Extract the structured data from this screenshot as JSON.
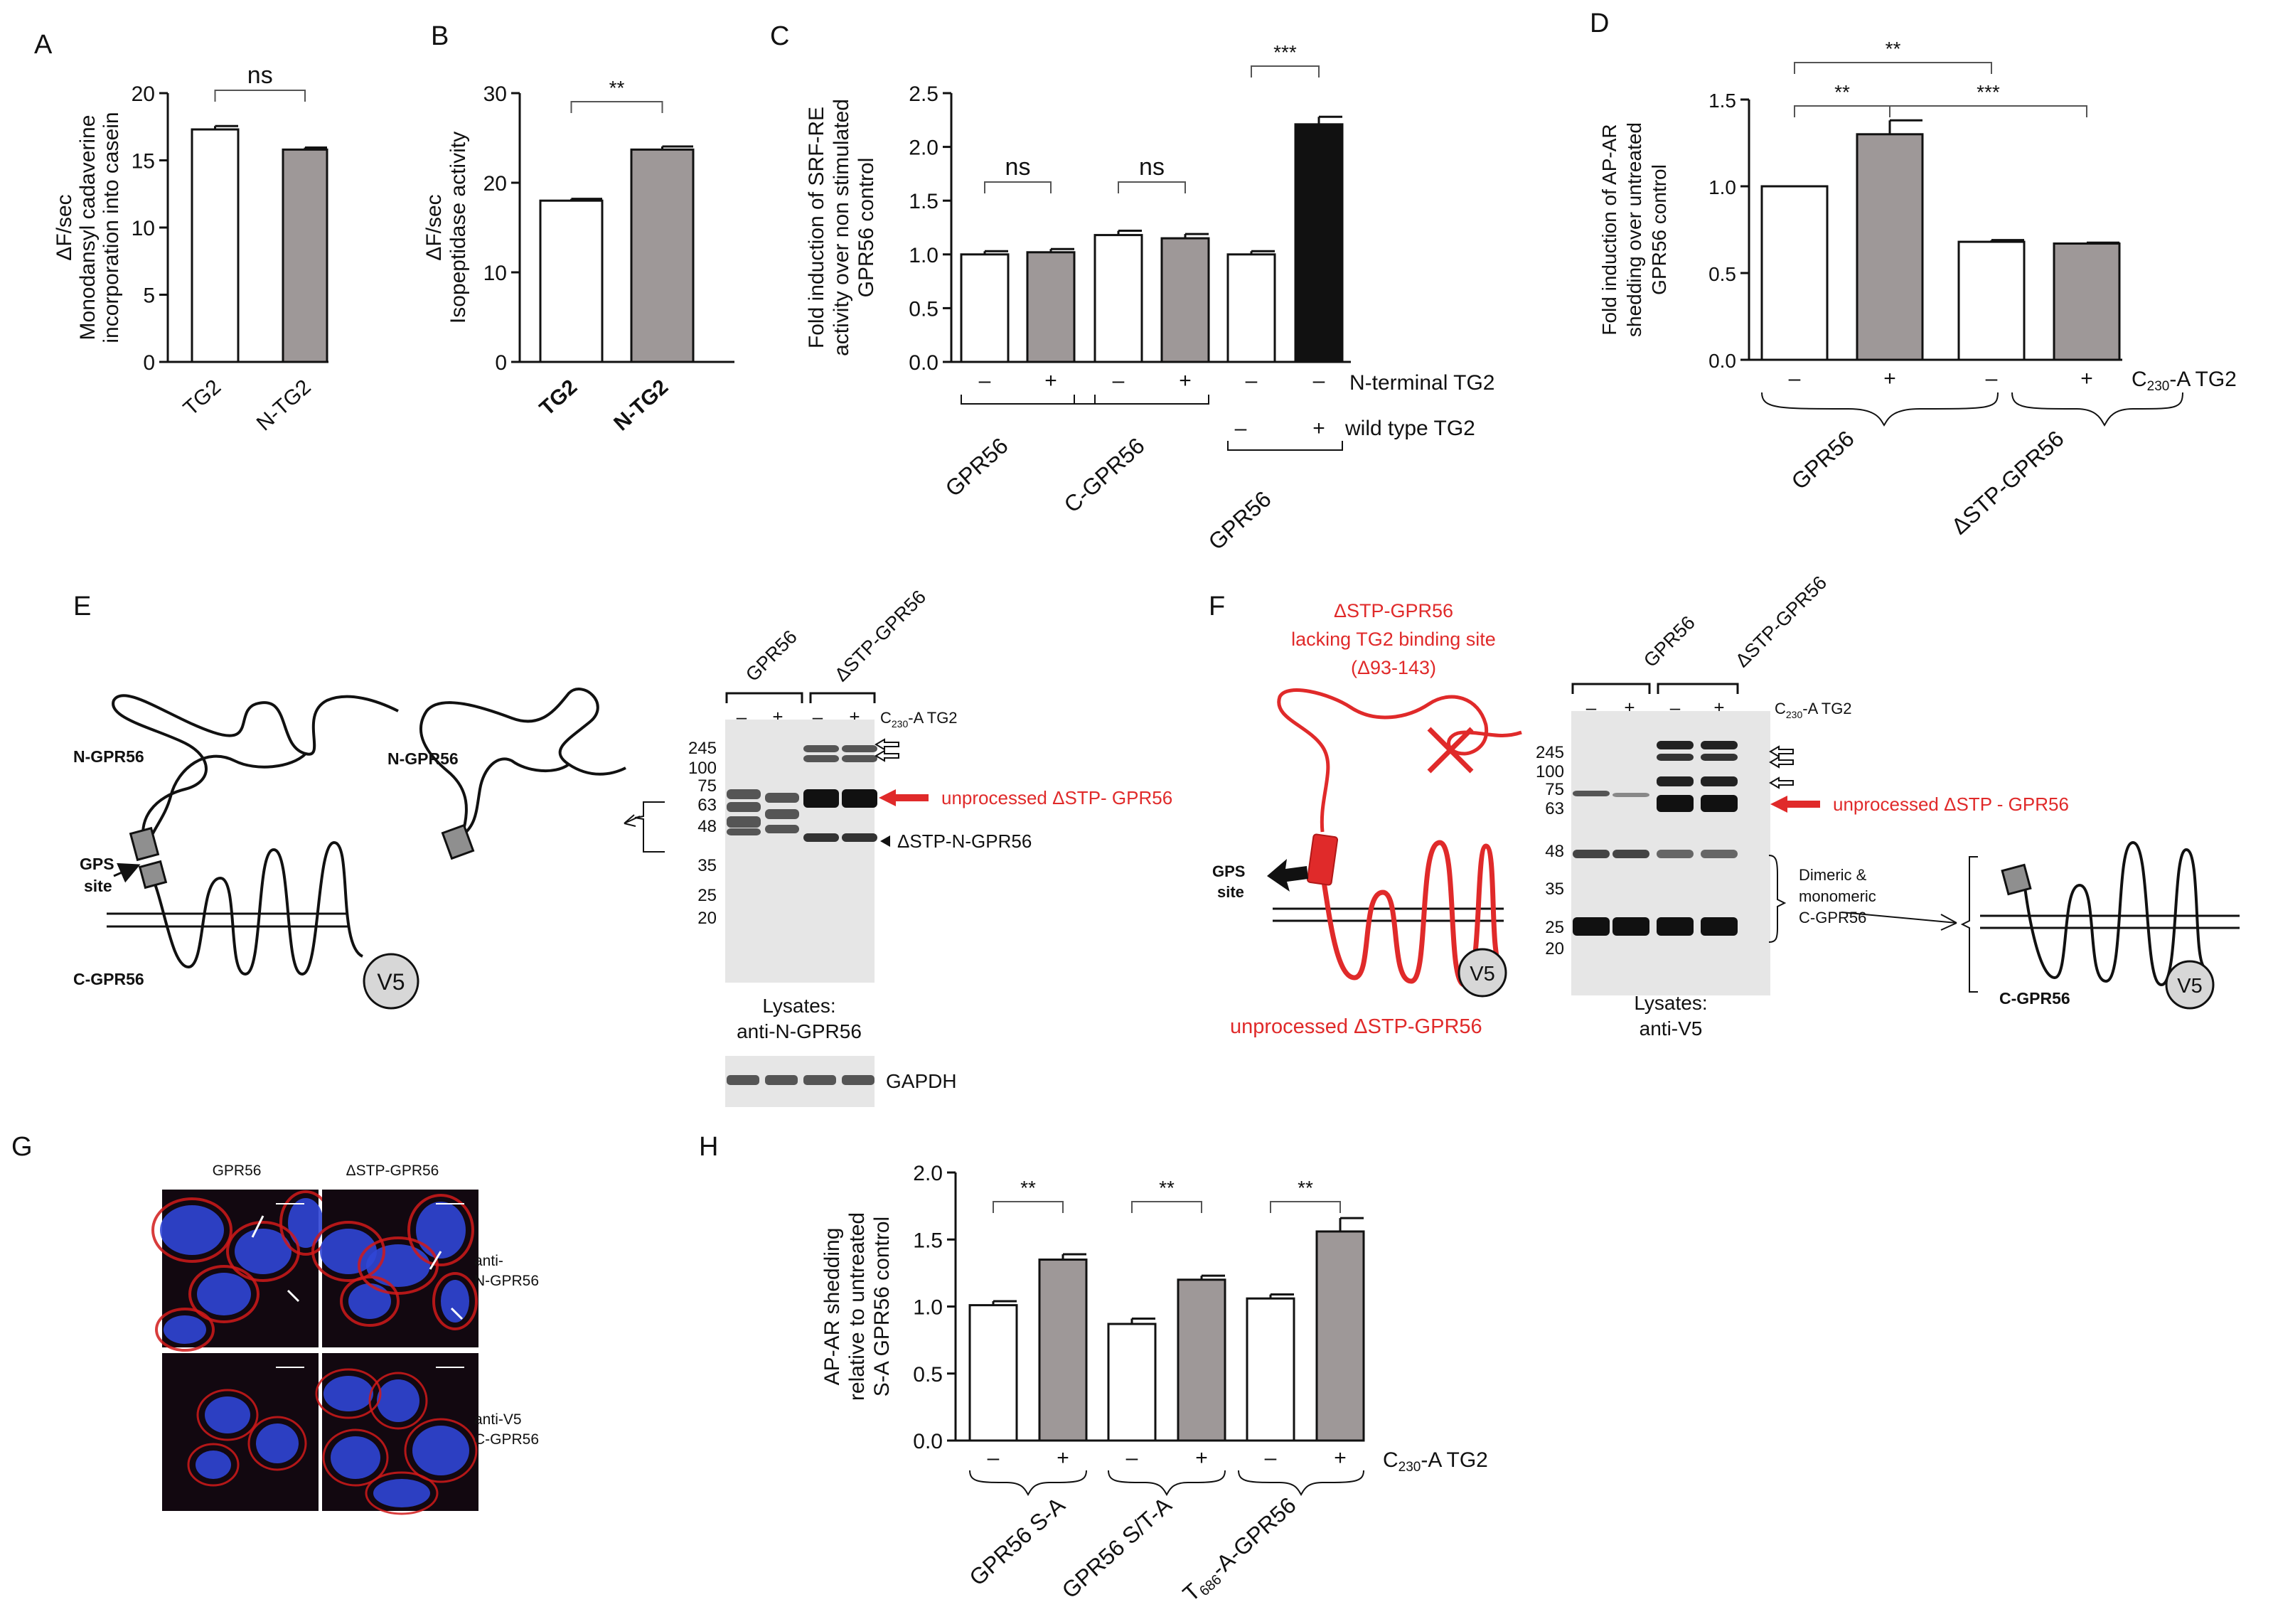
{
  "panels": {
    "A": "A",
    "B": "B",
    "C": "C",
    "D": "D",
    "E": "E",
    "F": "F",
    "G": "G",
    "H": "H"
  },
  "chart_data": [
    {
      "id": "A",
      "type": "bar",
      "categories": [
        "TG2",
        "N-TG2"
      ],
      "values": [
        17.3,
        15.8
      ],
      "errors": [
        0.25,
        0.15
      ],
      "fills": [
        "#ffffff",
        "#9e9898"
      ],
      "ylabel_lines": [
        "ΔF/sec",
        "Monodansyl cadaverine",
        "incorporation into casein"
      ],
      "yticks": [
        0,
        5,
        10,
        15,
        20
      ],
      "ylim": [
        0,
        20
      ],
      "significance": [
        {
          "label": "ns",
          "from": 0,
          "to": 1
        }
      ]
    },
    {
      "id": "B",
      "type": "bar",
      "categories": [
        "TG2",
        "N-TG2"
      ],
      "values": [
        18.0,
        23.7
      ],
      "errors": [
        0.2,
        0.35
      ],
      "fills": [
        "#ffffff",
        "#9e9898"
      ],
      "ylabel_lines": [
        "ΔF/sec",
        "Isopeptidase activity"
      ],
      "yticks": [
        0,
        10,
        20,
        30
      ],
      "ylim": [
        0,
        30
      ],
      "significance": [
        {
          "label": "**",
          "from": 0,
          "to": 1
        }
      ]
    },
    {
      "id": "C",
      "type": "bar",
      "categories": [
        "–",
        "+",
        "–",
        "+",
        "–",
        "–"
      ],
      "values": [
        1.0,
        1.02,
        1.18,
        1.15,
        1.0,
        2.21
      ],
      "errors": [
        0.03,
        0.03,
        0.04,
        0.04,
        0.03,
        0.07
      ],
      "fills": [
        "#ffffff",
        "#9e9898",
        "#ffffff",
        "#9e9898",
        "#ffffff",
        "#111111"
      ],
      "ylabel_lines": [
        "Fold induction of SRF-RE",
        "activity over non stimulated",
        "GPR56 control"
      ],
      "yticks": [
        "0.0",
        "0.5",
        "1.0",
        "1.5",
        "2.0",
        "2.5"
      ],
      "ylim": [
        0,
        2.5
      ],
      "significance": [
        {
          "label": "ns",
          "from": 0,
          "to": 1
        },
        {
          "label": "ns",
          "from": 2,
          "to": 3
        },
        {
          "label": "***",
          "from": 4,
          "to": 5
        }
      ],
      "row_labels": [
        "N-terminal TG2",
        "wild type TG2"
      ],
      "row2_signs": [
        "–",
        "+"
      ],
      "groups": [
        "GPR56",
        "C-GPR56",
        "GPR56"
      ]
    },
    {
      "id": "D",
      "type": "bar",
      "categories": [
        "–",
        "+",
        "–",
        "+"
      ],
      "values": [
        1.0,
        1.3,
        0.68,
        0.67
      ],
      "errors": [
        0.0,
        0.08,
        0.01,
        0.005
      ],
      "fills": [
        "#ffffff",
        "#9e9898",
        "#ffffff",
        "#9e9898"
      ],
      "ylabel_lines": [
        "Fold induction of AP-AR",
        "shedding over untreated",
        "GPR56 control"
      ],
      "yticks": [
        "0.0",
        "0.5",
        "1.0",
        "1.5"
      ],
      "ylim": [
        0,
        1.5
      ],
      "significance": [
        {
          "label": "**",
          "from": 0,
          "to": 1
        },
        {
          "label": "**",
          "from": 0,
          "to": 2
        },
        {
          "label": "***",
          "from": 1,
          "to": 3
        }
      ],
      "treatment_label": "C230-A TG2",
      "groups": [
        "GPR56",
        "ΔSTP-GPR56"
      ]
    },
    {
      "id": "H",
      "type": "bar",
      "categories": [
        "–",
        "+",
        "–",
        "+",
        "–",
        "+"
      ],
      "values": [
        1.01,
        1.35,
        0.87,
        1.2,
        1.06,
        1.56
      ],
      "errors": [
        0.03,
        0.04,
        0.04,
        0.03,
        0.03,
        0.1
      ],
      "fills": [
        "#ffffff",
        "#9e9898",
        "#ffffff",
        "#9e9898",
        "#ffffff",
        "#9e9898"
      ],
      "ylabel_lines": [
        "AP-AR shedding",
        "relative to untreated",
        "S-A GPR56 control"
      ],
      "yticks": [
        "0.0",
        "0.5",
        "1.0",
        "1.5",
        "2.0"
      ],
      "ylim": [
        0,
        2.0
      ],
      "significance": [
        {
          "label": "**",
          "from": 0,
          "to": 1
        },
        {
          "label": "**",
          "from": 2,
          "to": 3
        },
        {
          "label": "**",
          "from": 4,
          "to": 5
        }
      ],
      "treatment_label": "C230-A TG2",
      "groups": [
        "GPR56 S-A",
        "GPR56 S/T-A",
        "T686-A-GPR56"
      ]
    }
  ],
  "blots": {
    "E": {
      "col_headers": [
        "GPR56",
        "ΔSTP-GPR56"
      ],
      "lane_signs": [
        "–",
        "+",
        "–",
        "+"
      ],
      "treatment": "C230-A TG2",
      "markers": [
        "245",
        "100",
        "75",
        "63",
        "48",
        "35",
        "25",
        "20"
      ],
      "red_label": "unprocessed  ΔSTP- GPR56",
      "black_label": "ΔSTP-N-GPR56",
      "caption_lines": [
        "Lysates:",
        "anti-N-GPR56"
      ],
      "loading_label": "GAPDH"
    },
    "F": {
      "col_headers": [
        "GPR56",
        "ΔSTP-GPR56"
      ],
      "lane_signs": [
        "–",
        "+",
        "–",
        "+"
      ],
      "treatment": "C230-A TG2",
      "markers": [
        "245",
        "100",
        "75",
        "63",
        "48",
        "35",
        "25",
        "20"
      ],
      "red_label": "unprocessed  ΔSTP - GPR56",
      "brace_lines": [
        "Dimeric &",
        "monomeric",
        "C-GPR56"
      ],
      "caption_lines": [
        "Lysates:",
        "anti-V5"
      ]
    }
  },
  "diagrams": {
    "E": {
      "n_label": "N-GPR56",
      "n_label2": "N-GPR56",
      "gps_lines": [
        "GPS",
        "site"
      ],
      "c_label": "C-GPR56",
      "tag": "V5"
    },
    "F": {
      "title_lines": [
        "ΔSTP-GPR56",
        "lacking TG2 binding site",
        "(Δ93-143)"
      ],
      "gps_lines": [
        "GPS",
        "site"
      ],
      "tag": "V5",
      "bottom": "unprocessed  ΔSTP-GPR56",
      "c_label": "C-GPR56",
      "tag2": "V5"
    }
  },
  "micrographs": {
    "col_headers": [
      "GPR56",
      "ΔSTP-GPR56"
    ],
    "row_labels": [
      [
        "anti-",
        "N-GPR56"
      ],
      [
        "anti-V5",
        "C-GPR56"
      ]
    ]
  }
}
